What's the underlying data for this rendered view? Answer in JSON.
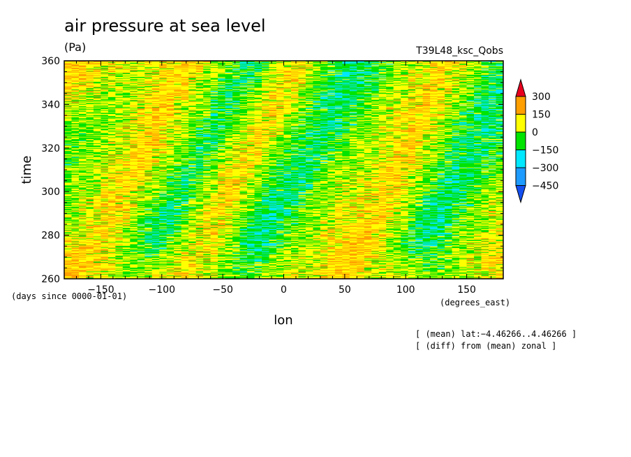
{
  "chart_data": {
    "type": "heatmap",
    "title": "air pressure at sea level",
    "units": "(Pa)",
    "run_label": "T39L48_ksc_Qobs",
    "xlabel": "lon",
    "x_units": "(degrees_east)",
    "ylabel": "time",
    "y_units": "(days since 0000-01-01)",
    "xlim": [
      -180,
      180
    ],
    "ylim": [
      260,
      360
    ],
    "x_ticks": [
      -150,
      -100,
      -50,
      0,
      50,
      100,
      150
    ],
    "x_tick_labels": [
      "−150",
      "−100",
      "−50",
      "0",
      "50",
      "100",
      "150"
    ],
    "y_ticks": [
      260,
      280,
      300,
      320,
      340,
      360
    ],
    "y_tick_labels": [
      "260",
      "280",
      "300",
      "320",
      "340",
      "360"
    ],
    "colorbar": {
      "levels": [
        300,
        150,
        0,
        -150,
        -300,
        -450
      ],
      "labels": [
        "300",
        "150",
        "0",
        "−150",
        "−300",
        "−450"
      ],
      "bins": [
        {
          "range": [
            300,
            null
          ],
          "color": "#e8001e"
        },
        {
          "range": [
            150,
            300
          ],
          "color": "#ff9f00"
        },
        {
          "range": [
            0,
            150
          ],
          "color": "#ffff00"
        },
        {
          "range": [
            -150,
            0
          ],
          "color": "#00e400"
        },
        {
          "range": [
            -300,
            -150
          ],
          "color": "#00e8ff"
        },
        {
          "range": [
            -450,
            -300
          ],
          "color": "#1e9bff"
        },
        {
          "range": [
            null,
            -450
          ],
          "color": "#1450f0"
        }
      ]
    },
    "notes": [
      "[ (mean) lat:−4.46266..4.46266 ]",
      "[ (diff) from (mean) zonal ]"
    ],
    "field_rows": [
      [
        80,
        60,
        40,
        20,
        10,
        20,
        40,
        60,
        50,
        30,
        10,
        0,
        -20,
        -10,
        10,
        30,
        40,
        50,
        70,
        60,
        40,
        30,
        20,
        10,
        0,
        -10,
        0,
        20,
        40,
        50
      ],
      [
        60,
        70,
        50,
        30,
        0,
        -20,
        -10,
        20,
        50,
        40,
        20,
        -10,
        -40,
        -30,
        0,
        20,
        30,
        40,
        60,
        70,
        50,
        30,
        10,
        -10,
        -30,
        -20,
        10,
        30,
        50,
        60
      ],
      [
        40,
        50,
        60,
        40,
        10,
        -30,
        -50,
        -20,
        20,
        50,
        40,
        0,
        -60,
        -70,
        -40,
        0,
        20,
        30,
        50,
        60,
        60,
        40,
        0,
        -40,
        -60,
        -40,
        0,
        20,
        40,
        50
      ],
      [
        20,
        30,
        50,
        50,
        20,
        -20,
        -60,
        -50,
        0,
        40,
        50,
        20,
        -40,
        -80,
        -60,
        -20,
        10,
        20,
        40,
        50,
        60,
        50,
        10,
        -30,
        -70,
        -60,
        -20,
        10,
        30,
        40
      ],
      [
        10,
        20,
        40,
        60,
        40,
        0,
        -40,
        -60,
        -30,
        20,
        50,
        40,
        -10,
        -60,
        -70,
        -40,
        -10,
        10,
        30,
        40,
        50,
        60,
        30,
        -10,
        -50,
        -70,
        -40,
        -10,
        20,
        30
      ],
      [
        0,
        10,
        30,
        50,
        60,
        30,
        -10,
        -40,
        -50,
        0,
        40,
        60,
        20,
        -30,
        -60,
        -60,
        -30,
        0,
        20,
        30,
        40,
        60,
        50,
        10,
        -30,
        -60,
        -60,
        -30,
        10,
        20
      ],
      [
        -10,
        0,
        20,
        40,
        60,
        50,
        20,
        -20,
        -50,
        -30,
        20,
        60,
        50,
        0,
        -40,
        -60,
        -50,
        -20,
        10,
        20,
        30,
        50,
        60,
        30,
        -10,
        -40,
        -60,
        -50,
        -10,
        0
      ],
      [
        -20,
        -10,
        10,
        30,
        50,
        60,
        40,
        10,
        -30,
        -50,
        -10,
        40,
        60,
        30,
        -20,
        -50,
        -60,
        -40,
        -10,
        10,
        20,
        40,
        60,
        50,
        10,
        -30,
        -50,
        -60,
        -30,
        -10
      ],
      [
        -10,
        -20,
        0,
        20,
        40,
        60,
        60,
        30,
        -10,
        -40,
        -40,
        10,
        50,
        50,
        10,
        -30,
        -50,
        -60,
        -30,
        0,
        10,
        30,
        50,
        60,
        30,
        -10,
        -40,
        -60,
        -50,
        -20
      ],
      [
        0,
        -10,
        -10,
        10,
        30,
        50,
        60,
        50,
        10,
        -30,
        -50,
        -20,
        30,
        60,
        40,
        -10,
        -40,
        -60,
        -50,
        -20,
        0,
        20,
        40,
        60,
        50,
        10,
        -30,
        -50,
        -60,
        -40
      ],
      [
        20,
        10,
        0,
        0,
        20,
        40,
        60,
        60,
        30,
        -10,
        -50,
        -40,
        0,
        50,
        60,
        20,
        -30,
        -50,
        -60,
        -40,
        -10,
        10,
        30,
        50,
        60,
        30,
        -10,
        -40,
        -60,
        -50
      ],
      [
        40,
        30,
        20,
        10,
        10,
        30,
        50,
        60,
        50,
        10,
        -30,
        -50,
        -30,
        20,
        60,
        50,
        0,
        -40,
        -60,
        -60,
        -30,
        0,
        20,
        40,
        60,
        50,
        10,
        -30,
        -50,
        -60
      ],
      [
        60,
        50,
        40,
        30,
        20,
        20,
        40,
        60,
        60,
        30,
        -10,
        -40,
        -50,
        -10,
        40,
        60,
        30,
        -20,
        -50,
        -60,
        -50,
        -20,
        10,
        30,
        50,
        60,
        30,
        -10,
        -40,
        -50
      ],
      [
        70,
        70,
        60,
        50,
        40,
        30,
        30,
        50,
        60,
        50,
        20,
        -20,
        -50,
        -40,
        10,
        50,
        50,
        0,
        -40,
        -60,
        -60,
        -40,
        0,
        20,
        40,
        60,
        50,
        10,
        -30,
        -40
      ]
    ]
  }
}
